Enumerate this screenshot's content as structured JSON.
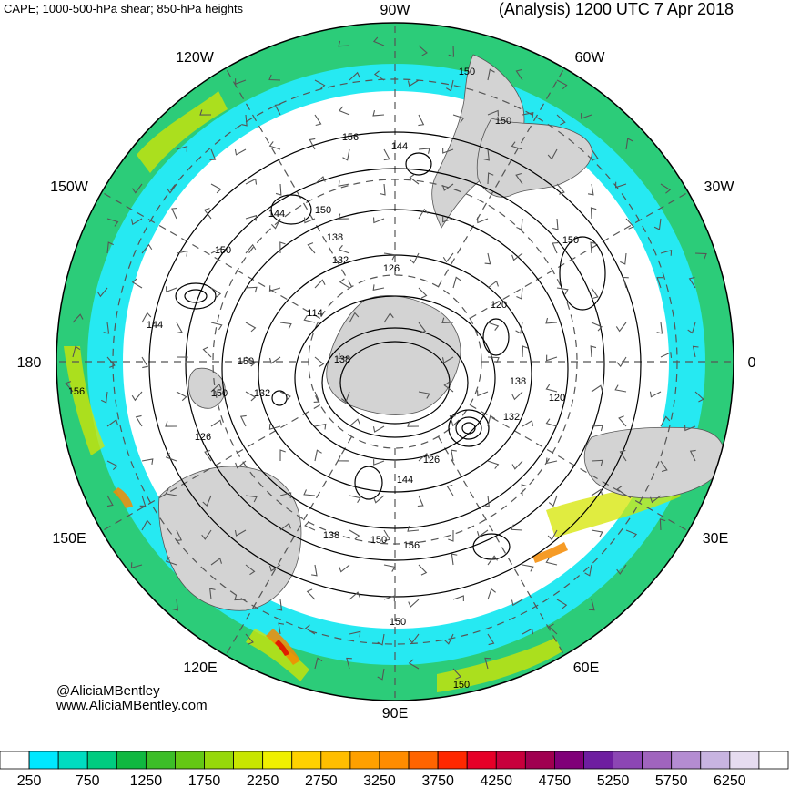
{
  "header": {
    "left_title": "CAPE; 1000-500-hPa shear; 850-hPa heights",
    "right_title": "(Analysis) 1200 UTC 7 Apr 2018"
  },
  "map": {
    "longitude_labels": [
      "90W",
      "60W",
      "30W",
      "0",
      "30E",
      "60E",
      "90E",
      "120E",
      "150E",
      "180",
      "150W",
      "120W"
    ],
    "height_contour_labels": [
      "150",
      "150",
      "156",
      "144",
      "144",
      "150",
      "150",
      "138",
      "132",
      "126",
      "144",
      "120",
      "114",
      "138",
      "150",
      "132",
      "150",
      "156",
      "126",
      "138",
      "120",
      "132",
      "126",
      "144",
      "138",
      "150",
      "156",
      "150",
      "150",
      "150"
    ],
    "colors": {
      "land": "#d3d3d3",
      "ocean": "#ffffff",
      "cape_cyan": "#00e5f0",
      "cape_teal": "#00cfa8",
      "cape_green": "#2ec45a",
      "cape_yellow": "#f0e600",
      "cape_orange": "#f58a00",
      "cape_red": "#e01000"
    }
  },
  "credits": {
    "line1": "@AliciaMBentley",
    "line2": "www.AliciaMBentley.com"
  },
  "colorbar": {
    "labels": [
      "250",
      "750",
      "1250",
      "1750",
      "2250",
      "2750",
      "3250",
      "3750",
      "4250",
      "4750",
      "5250",
      "5750",
      "6250"
    ],
    "colors": [
      "#ffffff",
      "#00e8ff",
      "#00dcc0",
      "#00cc80",
      "#10b840",
      "#3cbe28",
      "#64c814",
      "#96d80a",
      "#c8e600",
      "#f0f000",
      "#ffd200",
      "#ffbe00",
      "#ffa000",
      "#ff8c00",
      "#ff6400",
      "#ff2800",
      "#e60028",
      "#c8003c",
      "#a00050",
      "#800078",
      "#6e1ea0",
      "#8c46b4",
      "#a064be",
      "#b48cd2",
      "#c8b4e1",
      "#e6dcf0",
      "#ffffff"
    ]
  }
}
